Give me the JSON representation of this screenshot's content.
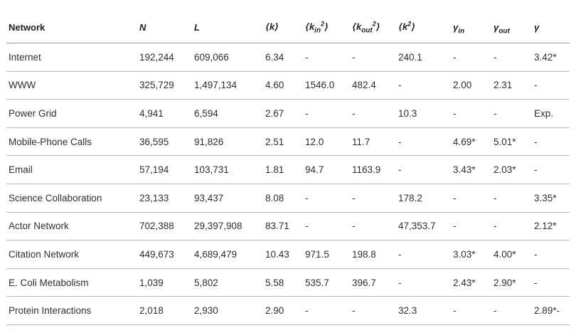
{
  "table": {
    "headers": {
      "network": "Network",
      "n": "N",
      "l": "L",
      "k": "⟨k⟩",
      "kin_open": "⟨k",
      "kin_sub": "in",
      "kin_sup": "2",
      "kin_close": "⟩",
      "kout_open": "⟨k",
      "kout_sub": "out",
      "kout_sup": "2",
      "kout_close": "⟩",
      "k2_open": "⟨k",
      "k2_sup": "2",
      "k2_close": "⟩",
      "gin_base": "γ",
      "gin_sub": "in",
      "gout_base": "γ",
      "gout_sub": "out",
      "gamma": "γ"
    },
    "rows": [
      {
        "network": "Internet",
        "n": "192,244",
        "l": "609,066",
        "k": "6.34",
        "kin2": "-",
        "kout2": "-",
        "k2": "240.1",
        "gin": "-",
        "gout": "-",
        "gamma": "3.42*"
      },
      {
        "network": "WWW",
        "n": "325,729",
        "l": "1,497,134",
        "k": "4.60",
        "kin2": "1546.0",
        "kout2": "482.4",
        "k2": "-",
        "gin": "2.00",
        "gout": "2.31",
        "gamma": "-"
      },
      {
        "network": "Power Grid",
        "n": "4,941",
        "l": "6,594",
        "k": "2.67",
        "kin2": "-",
        "kout2": "-",
        "k2": "10.3",
        "gin": "-",
        "gout": "-",
        "gamma": "Exp."
      },
      {
        "network": "Mobile-Phone Calls",
        "n": "36,595",
        "l": "91,826",
        "k": "2.51",
        "kin2": "12.0",
        "kout2": "11.7",
        "k2": "-",
        "gin": "4.69*",
        "gout": "5.01*",
        "gamma": "-"
      },
      {
        "network": "Email",
        "n": "57,194",
        "l": "103,731",
        "k": "1.81",
        "kin2": "94.7",
        "kout2": "1163.9",
        "k2": "-",
        "gin": "3.43*",
        "gout": "2.03*",
        "gamma": "-"
      },
      {
        "network": "Science Collaboration",
        "n": "23,133",
        "l": "93,437",
        "k": "8.08",
        "kin2": "-",
        "kout2": "-",
        "k2": "178.2",
        "gin": "-",
        "gout": "-",
        "gamma": "3.35*"
      },
      {
        "network": "Actor Network",
        "n": "702,388",
        "l": "29,397,908",
        "k": "83.71",
        "kin2": "-",
        "kout2": "-",
        "k2": "47,353.7",
        "gin": "-",
        "gout": "-",
        "gamma": "2.12*"
      },
      {
        "network": "Citation Network",
        "n": "449,673",
        "l": "4,689,479",
        "k": "10.43",
        "kin2": "971.5",
        "kout2": "198.8",
        "k2": "-",
        "gin": "3.03*",
        "gout": "4.00*",
        "gamma": "-"
      },
      {
        "network": "E. Coli Metabolism",
        "n": "1,039",
        "l": "5,802",
        "k": "5.58",
        "kin2": "535.7",
        "kout2": "396.7",
        "k2": "-",
        "gin": "2.43*",
        "gout": "2.90*",
        "gamma": "-"
      },
      {
        "network": "Protein Interactions",
        "n": "2,018",
        "l": "2,930",
        "k": "2.90",
        "kin2": "-",
        "kout2": "-",
        "k2": "32.3",
        "gin": "-",
        "gout": "-",
        "gamma": "2.89*-"
      }
    ]
  }
}
